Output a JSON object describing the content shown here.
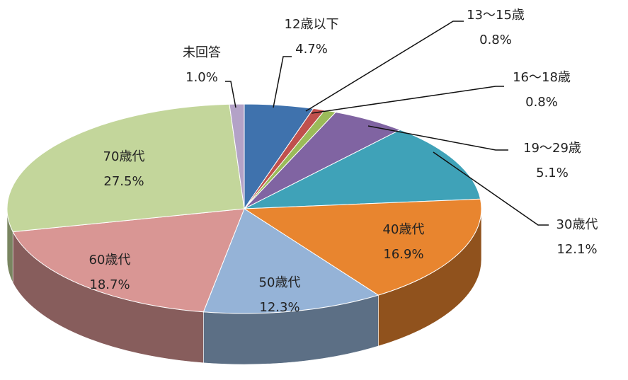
{
  "chart_data": {
    "type": "pie",
    "categories": [
      "12歳以下",
      "13〜15歳",
      "16〜18歳",
      "19〜29歳",
      "30歳代",
      "40歳代",
      "50歳代",
      "60歳代",
      "70歳代",
      "未回答"
    ],
    "values": [
      4.7,
      0.8,
      0.8,
      5.1,
      12.1,
      16.9,
      12.3,
      18.7,
      27.5,
      1.0
    ],
    "value_labels": [
      "4.7%",
      "0.8%",
      "0.8%",
      "5.1%",
      "12.1%",
      "16.9%",
      "12.3%",
      "18.7%",
      "27.5%",
      "1.0%"
    ],
    "colors": [
      "#3f72ad",
      "#c0504d",
      "#9bbb59",
      "#8064a2",
      "#3fa2b8",
      "#e8852f",
      "#95b3d7",
      "#d99694",
      "#c3d69b",
      "#b3a2c7"
    ]
  }
}
